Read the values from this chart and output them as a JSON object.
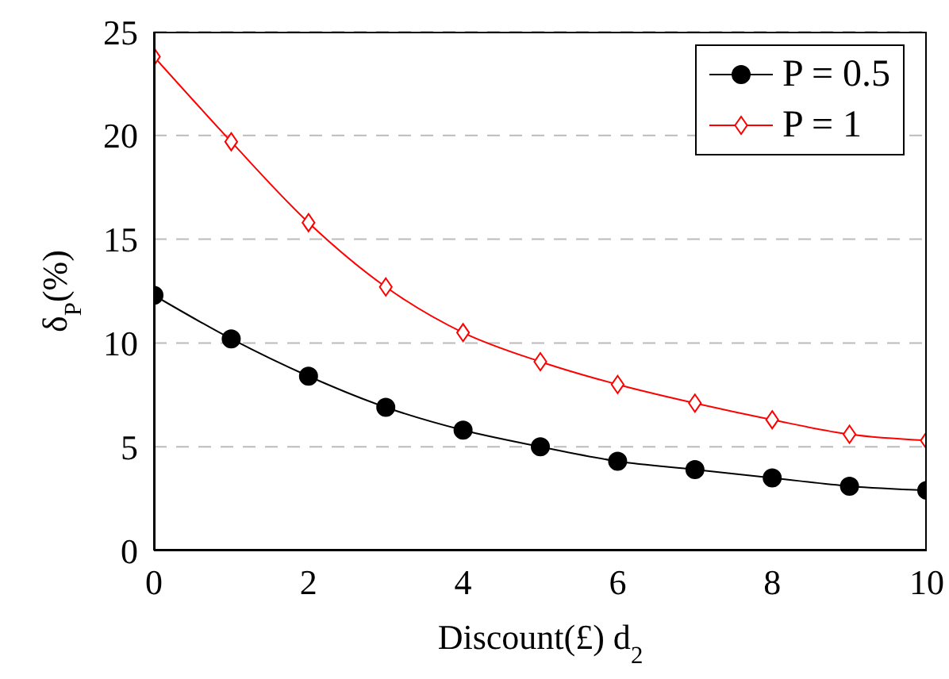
{
  "chart_data": {
    "type": "line",
    "xlabel": "Discount(£) d$_{2}$",
    "ylabel": "δ$_{P}$(%)",
    "x": [
      0,
      1,
      2,
      3,
      4,
      5,
      6,
      7,
      8,
      9,
      10
    ],
    "series": [
      {
        "name": "P = 0.5",
        "color": "#000000",
        "marker": "circle",
        "values": [
          12.3,
          10.2,
          8.4,
          6.9,
          5.8,
          5.0,
          4.3,
          3.9,
          3.5,
          3.1,
          2.9
        ]
      },
      {
        "name": "P = 1",
        "color": "#ff0000",
        "marker": "diamond",
        "values": [
          23.8,
          19.7,
          15.8,
          12.7,
          10.5,
          9.1,
          8.0,
          7.1,
          6.3,
          5.6,
          5.3
        ]
      }
    ],
    "xlim": [
      0,
      10
    ],
    "xticks": [
      0,
      2,
      4,
      6,
      8,
      10
    ],
    "ylim": [
      0,
      25
    ],
    "yticks": [
      0,
      5,
      10,
      15,
      20,
      25
    ],
    "grid": "y",
    "legend": "top right",
    "line_style": "solid"
  }
}
